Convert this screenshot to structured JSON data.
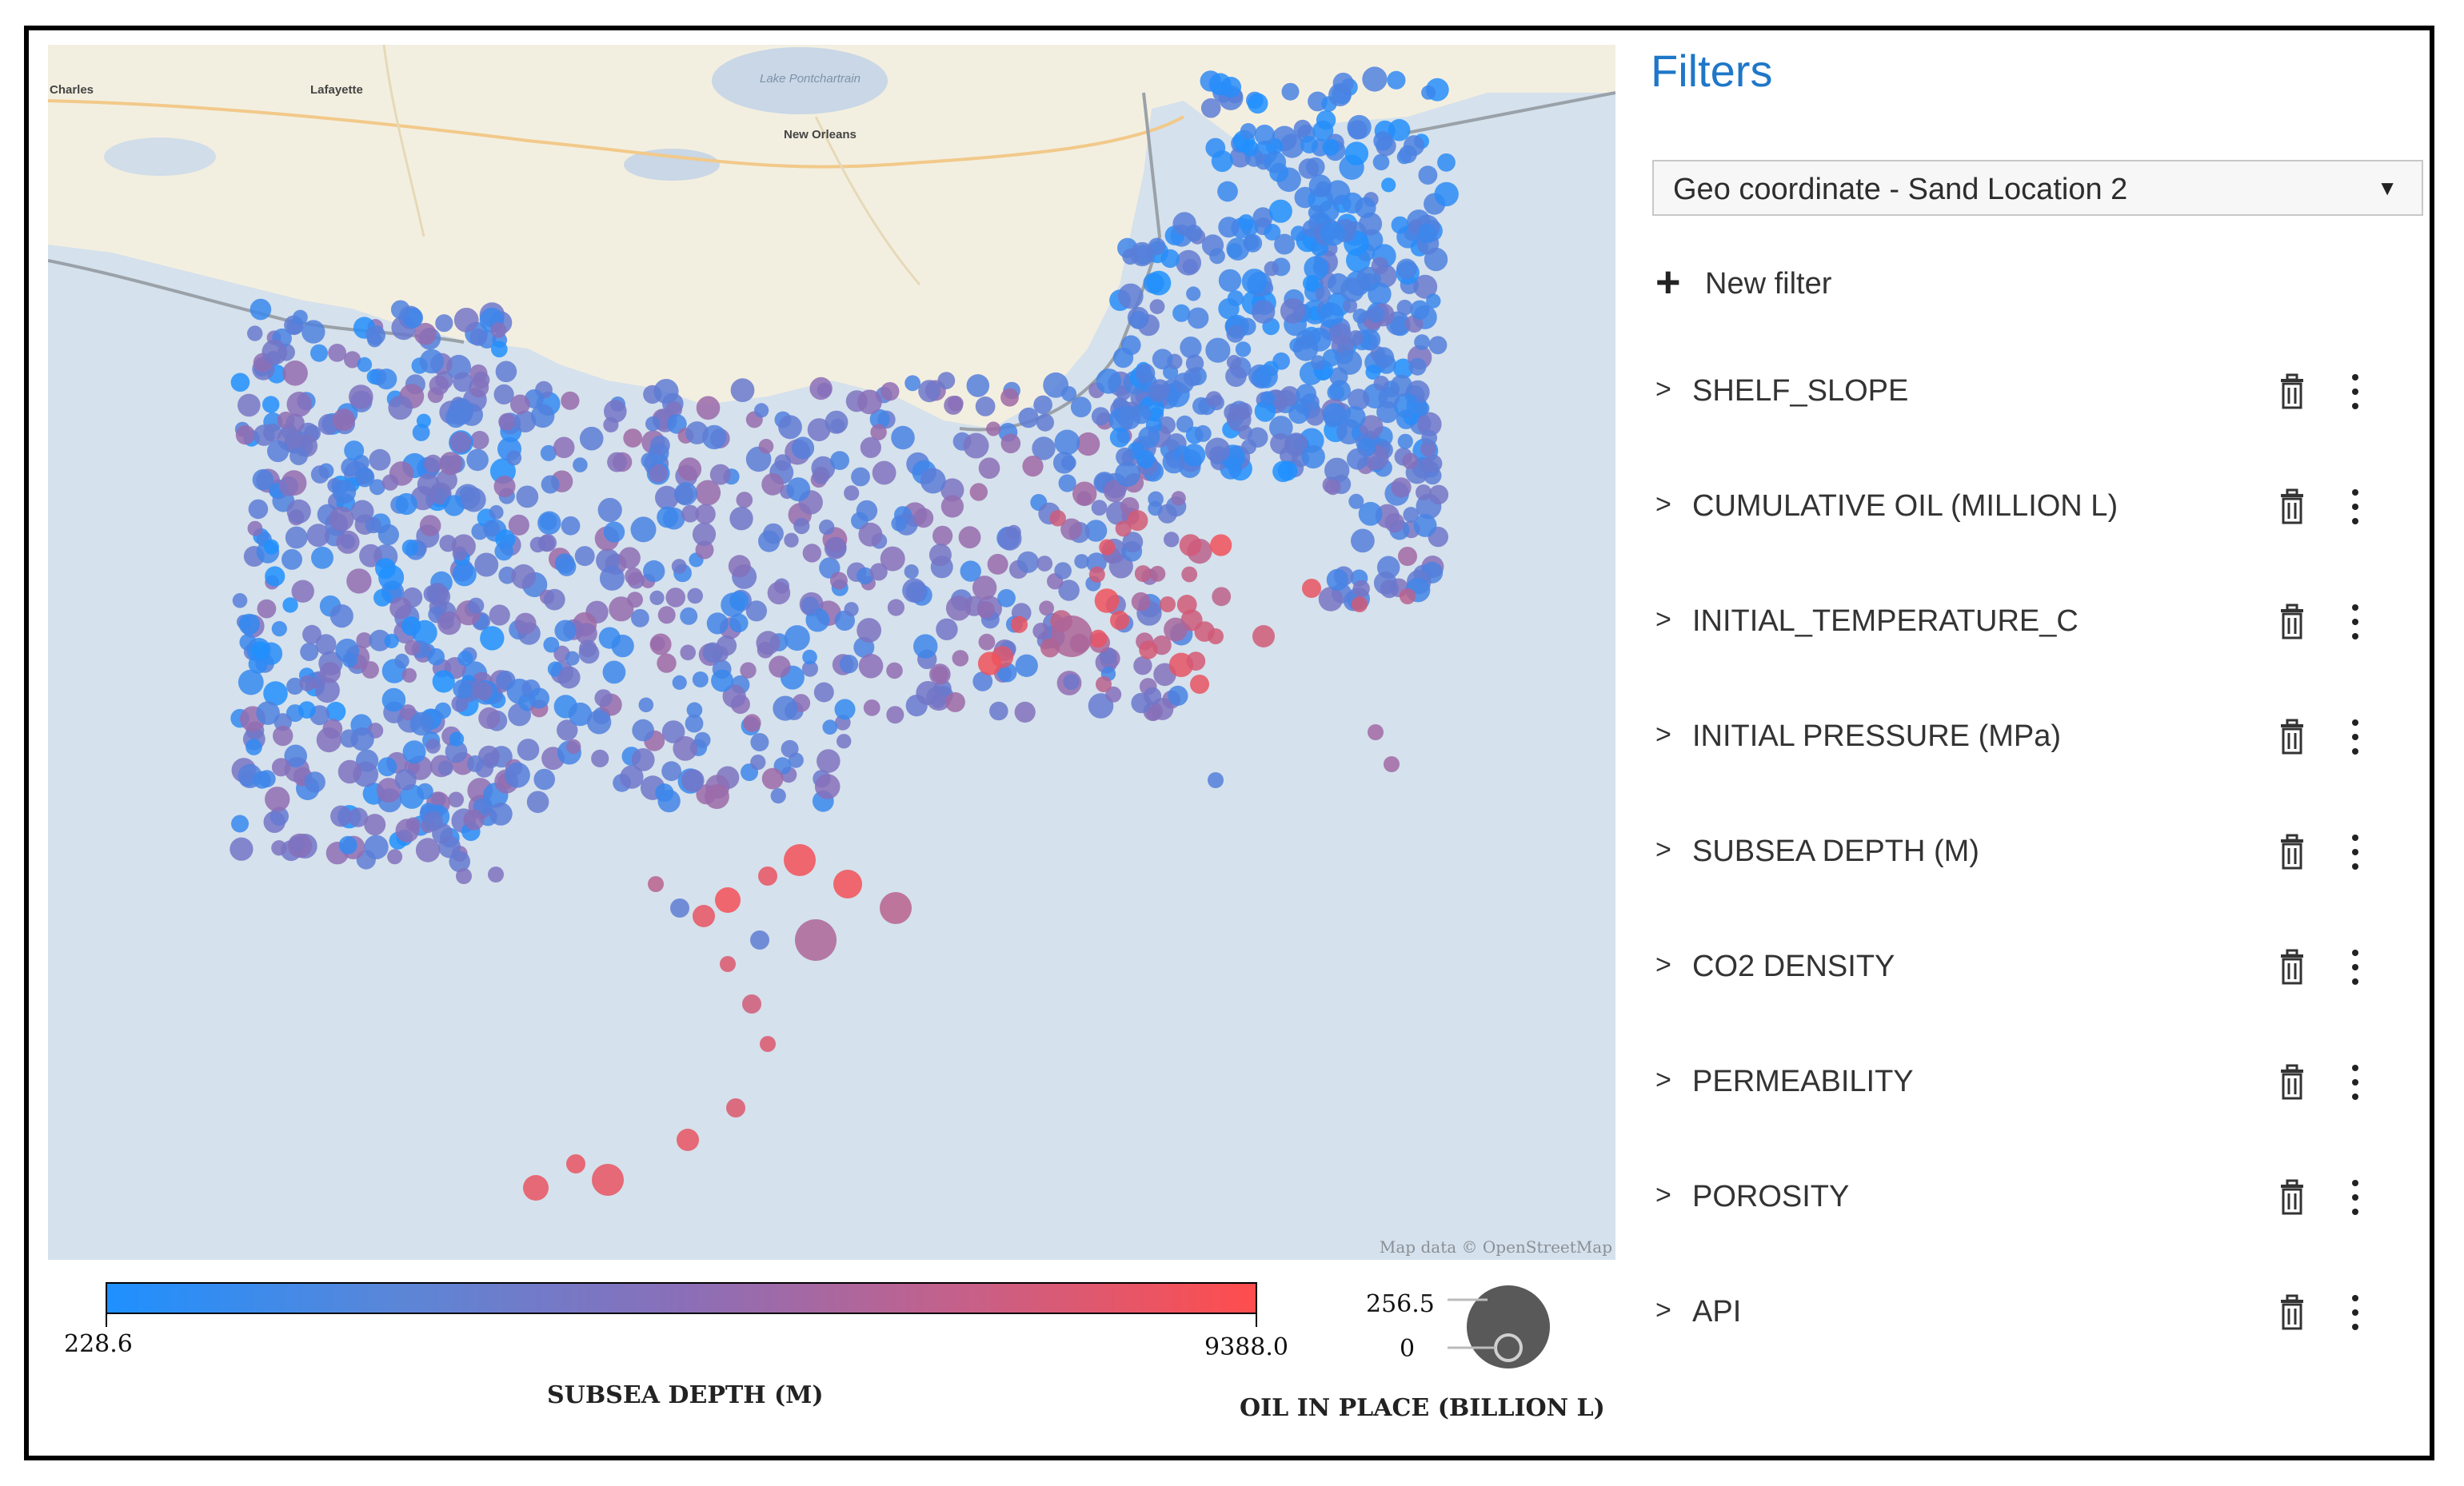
{
  "map": {
    "attribution": "Map data © OpenStreetMap",
    "cities": [
      "Charles",
      "Lafayette",
      "New Orleans",
      "Lake Pontchartrain"
    ],
    "colors": {
      "low": "#1e90ff",
      "high": "#ff4d4d",
      "water": "#d5e1ec",
      "land": "#f3efe0"
    }
  },
  "legend": {
    "color_title": "SUBSEA DEPTH (M)",
    "color_min": "228.6",
    "color_max": "9388.0",
    "size_title": "OIL IN PLACE (BILLION L)",
    "size_max": "256.5",
    "size_min": "0"
  },
  "filters": {
    "title": "Filters",
    "select_value": "Geo coordinate - Sand Location 2",
    "new_filter_label": "New filter",
    "items": [
      {
        "label": "SHELF_SLOPE"
      },
      {
        "label": "CUMULATIVE OIL (MILLION L)"
      },
      {
        "label": "INITIAL_TEMPERATURE_C"
      },
      {
        "label": "INITIAL PRESSURE (MPa)"
      },
      {
        "label": "SUBSEA DEPTH (M)"
      },
      {
        "label": "CO2 DENSITY"
      },
      {
        "label": "PERMEABILITY"
      },
      {
        "label": "POROSITY"
      },
      {
        "label": "API"
      }
    ]
  }
}
